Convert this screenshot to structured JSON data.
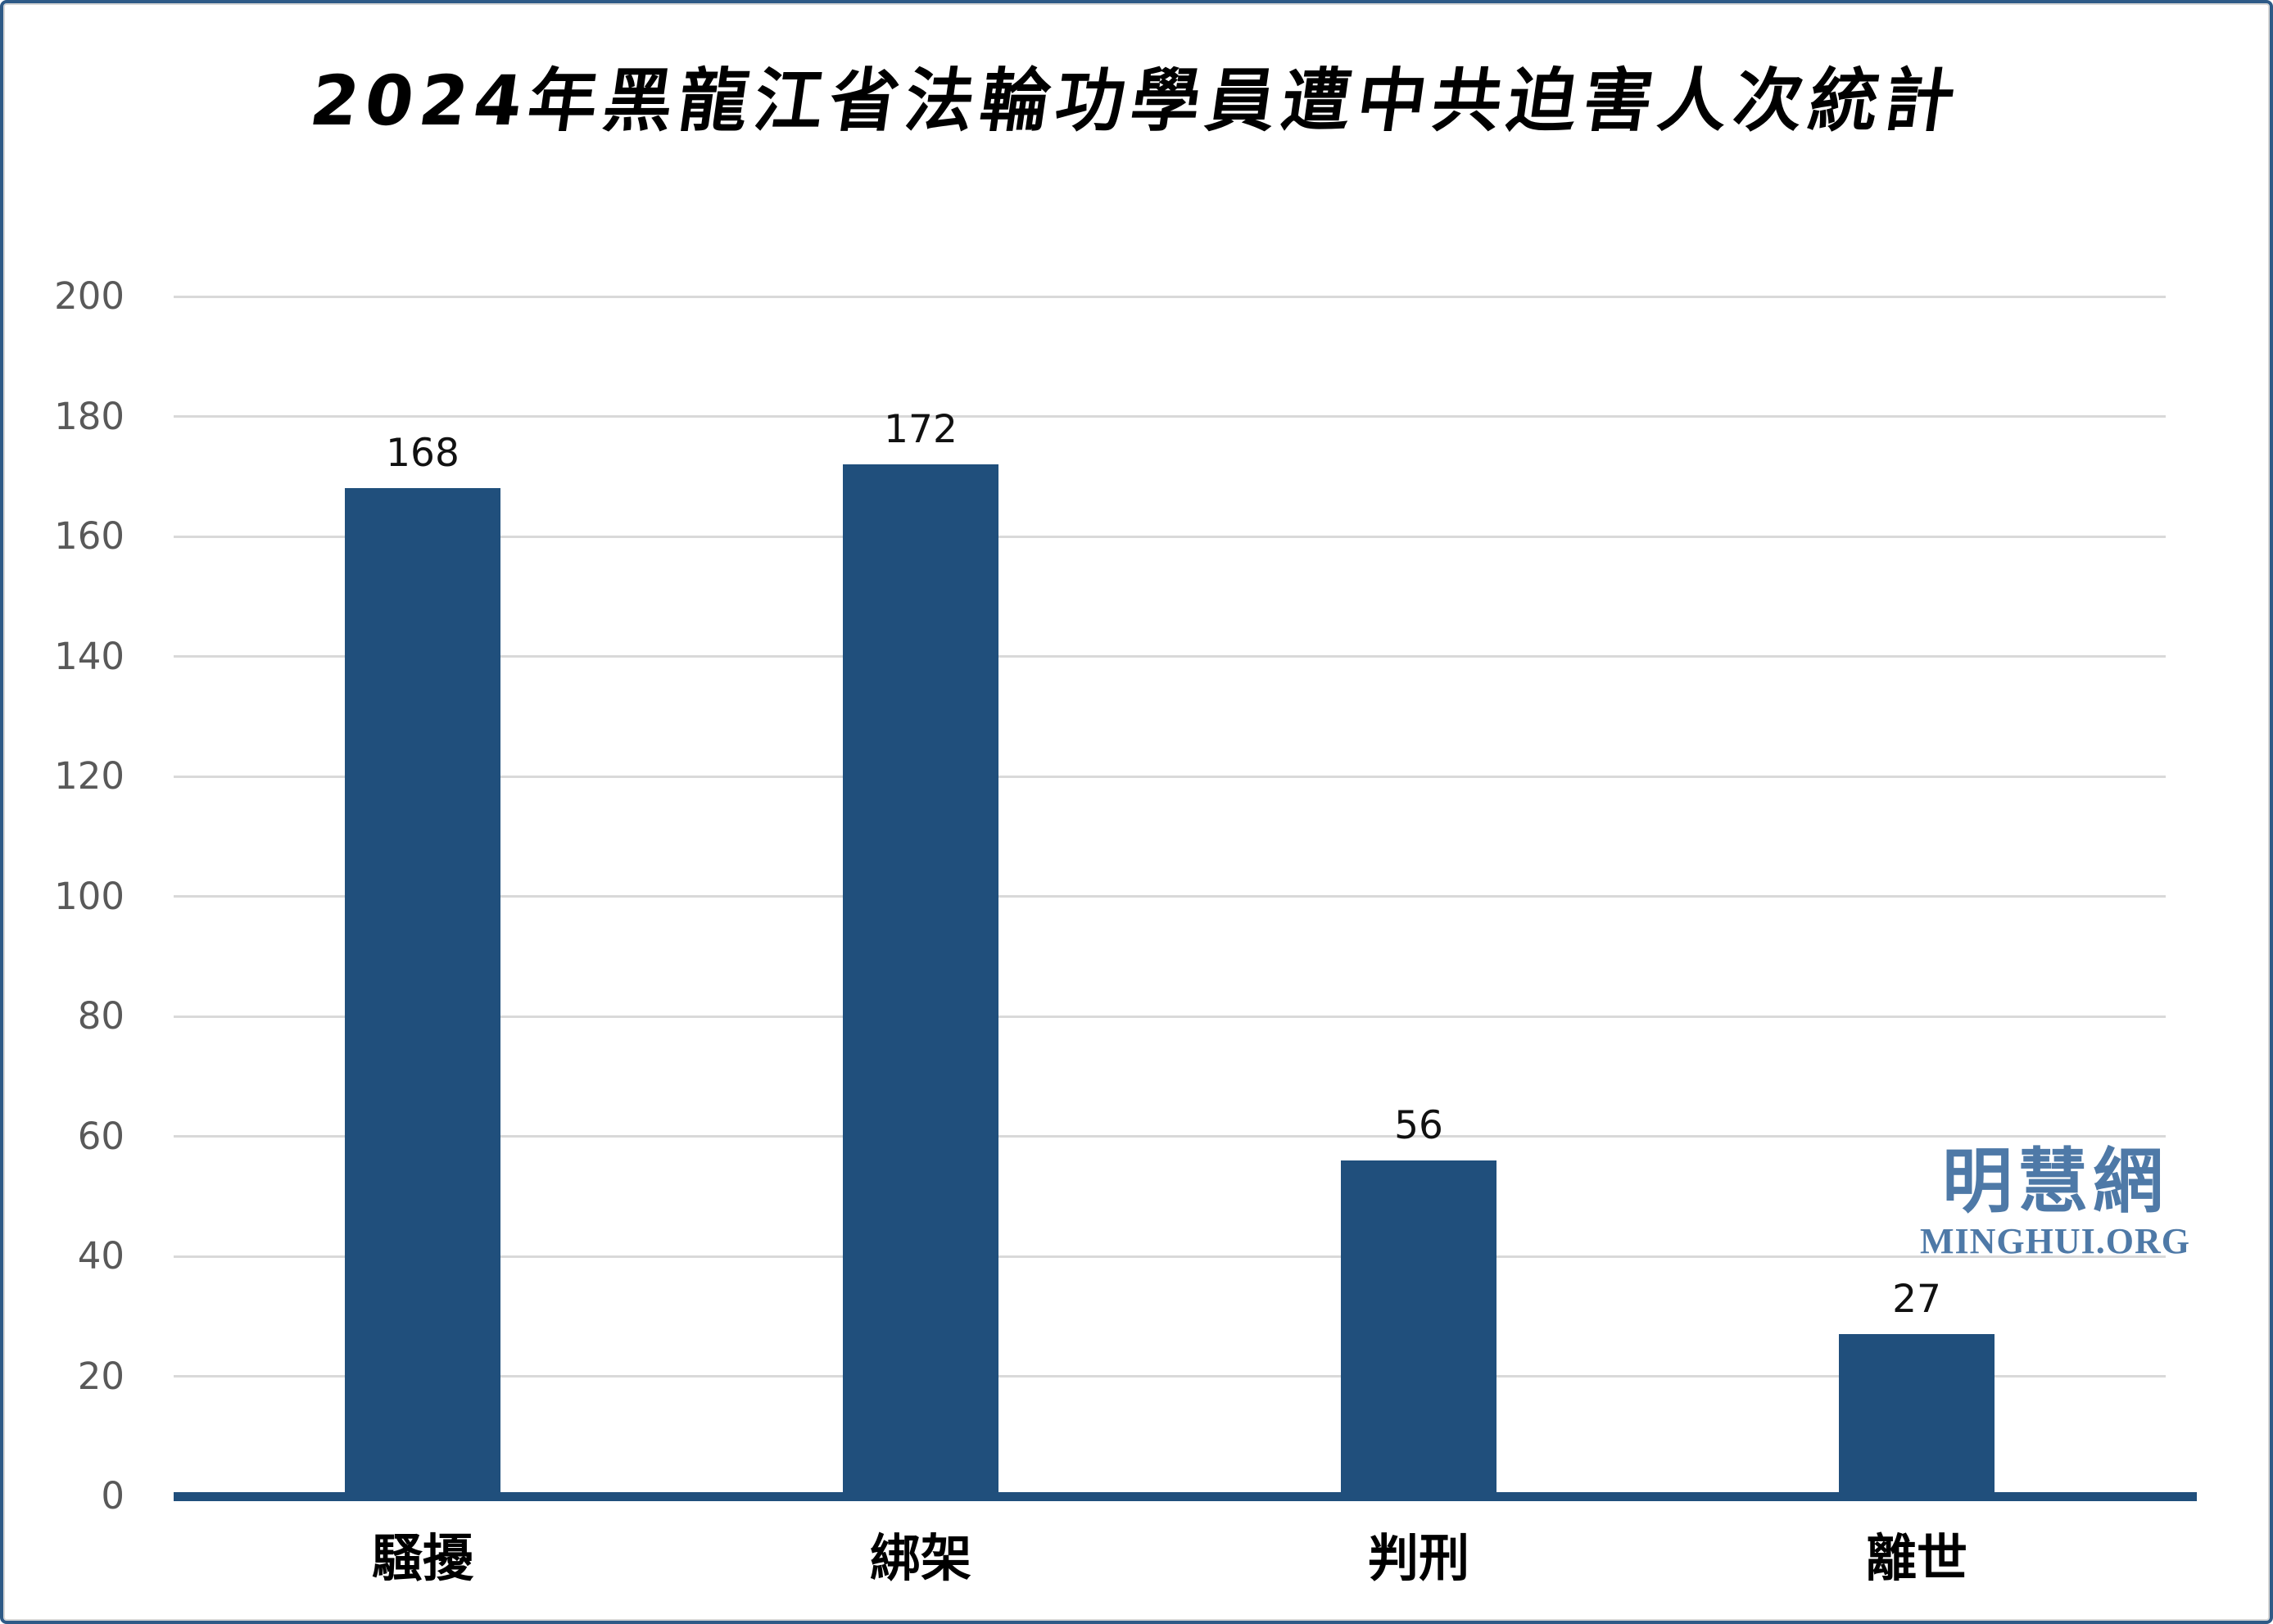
{
  "chart_data": {
    "type": "bar",
    "title": "2024年黑龍江省法輪功學員遭中共迫害人次統計",
    "categories": [
      "騷擾",
      "綁架",
      "判刑",
      "離世"
    ],
    "values": [
      168,
      172,
      56,
      27
    ],
    "value_labels": [
      "168",
      "172",
      "56",
      "27"
    ],
    "xlabel": "",
    "ylabel": "",
    "ylim": [
      0,
      200
    ],
    "ytick_interval": 20,
    "ytick_labels": [
      "0",
      "20",
      "40",
      "60",
      "80",
      "100",
      "120",
      "140",
      "160",
      "180",
      "200"
    ],
    "grid": true,
    "legend_position": "none",
    "bar_color": "#204F7C",
    "axis_line_color": "#204F7C",
    "gridline_color": "#D9D9D9",
    "tick_label_color": "#595959",
    "value_label_color": "#111111"
  },
  "watermark": {
    "cn": "明慧網",
    "en": "MINGHUI.ORG",
    "color": "#4E79A7"
  },
  "frame": {
    "border_color": "#2E5A87",
    "background_color": "#FFFFFF"
  }
}
